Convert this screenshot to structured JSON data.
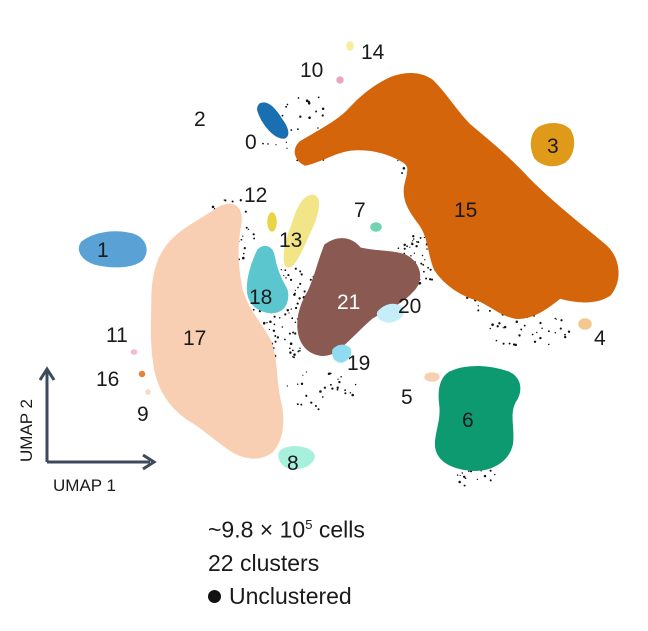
{
  "chart_data": {
    "type": "scatter",
    "xlabel": "UMAP 1",
    "ylabel": "UMAP 2",
    "clusters": [
      {
        "id": "0",
        "color": "#1a6fb0"
      },
      {
        "id": "1",
        "color": "#5aa1d6"
      },
      {
        "id": "2",
        "color": "#ffffff"
      },
      {
        "id": "3",
        "color": "#e09a1a"
      },
      {
        "id": "4",
        "color": "#f2c890"
      },
      {
        "id": "5",
        "color": "#f6d0b0"
      },
      {
        "id": "6",
        "color": "#0e9a70"
      },
      {
        "id": "7",
        "color": "#6fd3b4"
      },
      {
        "id": "8",
        "color": "#a6f0dc"
      },
      {
        "id": "9",
        "color": "#f9d9c4"
      },
      {
        "id": "10",
        "color": "#e9a6c4"
      },
      {
        "id": "11",
        "color": "#f2b9cf"
      },
      {
        "id": "12",
        "color": "#e8d444"
      },
      {
        "id": "13",
        "color": "#f1e588"
      },
      {
        "id": "14",
        "color": "#f6ee9c"
      },
      {
        "id": "15",
        "color": "#d4650a"
      },
      {
        "id": "16",
        "color": "#e6823c"
      },
      {
        "id": "17",
        "color": "#f9cfb4"
      },
      {
        "id": "18",
        "color": "#5cc6cf"
      },
      {
        "id": "19",
        "color": "#8fdcf0"
      },
      {
        "id": "20",
        "color": "#c6eef8"
      },
      {
        "id": "21",
        "color": "#8a5a52"
      }
    ],
    "unclustered_color": "#111111"
  },
  "caption": {
    "cells_prefix": "~9.8 × 10",
    "cells_exp": "5",
    "cells_suffix": " cells",
    "clusters_text": "22 clusters",
    "legend_label": "Unclustered"
  }
}
